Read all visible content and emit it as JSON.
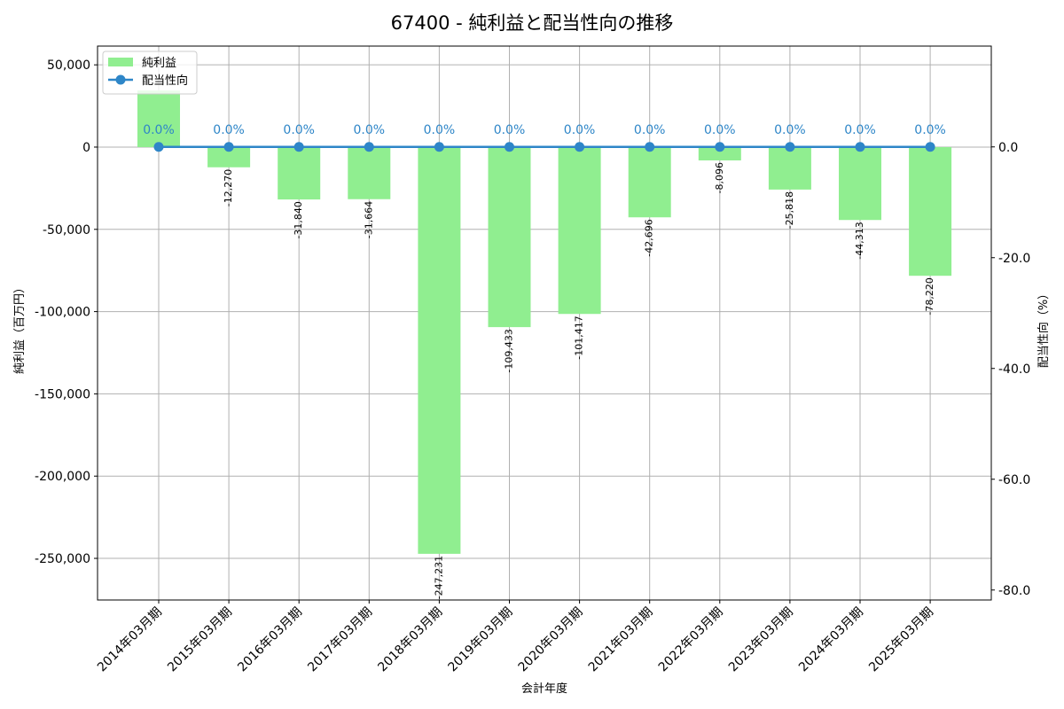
{
  "title": "67400 - 純利益と配当性向の推移",
  "chart_data": {
    "type": "bar+line",
    "title": "67400 - 純利益と配当性向の推移",
    "xlabel": "会計年度",
    "ylabel_left": "純利益（百万円）",
    "ylabel_right": "配当性向（%）",
    "categories": [
      "2014年03月期",
      "2015年03月期",
      "2016年03月期",
      "2017年03月期",
      "2018年03月期",
      "2019年03月期",
      "2020年03月期",
      "2021年03月期",
      "2022年03月期",
      "2023年03月期",
      "2024年03月期",
      "2025年03月期"
    ],
    "series": [
      {
        "name": "純利益",
        "type": "bar",
        "axis": "left",
        "color": "#90ee90",
        "values": [
          34400,
          -12270,
          -31840,
          -31664,
          -247231,
          -109433,
          -101417,
          -42696,
          -8096,
          -25818,
          -44313,
          -78220
        ],
        "labels": [
          "",
          "-12,270",
          "-31,840",
          "-31,664",
          "-247,231",
          "-109,433",
          "-101,417",
          "-42,696",
          "-8,096",
          "-25,818",
          "-44,313",
          "-78,220"
        ],
        "note": "2014 value label obscured by legend; value estimated from bar height"
      },
      {
        "name": "配当性向",
        "type": "line",
        "axis": "right",
        "color": "#2e86c8",
        "values": [
          0.0,
          0.0,
          0.0,
          0.0,
          0.0,
          0.0,
          0.0,
          0.0,
          0.0,
          0.0,
          0.0,
          0.0
        ],
        "labels": [
          "0.0%",
          "0.0%",
          "0.0%",
          "0.0%",
          "0.0%",
          "0.0%",
          "0.0%",
          "0.0%",
          "0.0%",
          "0.0%",
          "0.0%",
          "0.0%"
        ]
      }
    ],
    "ylim_left": [
      -275300,
      61400
    ],
    "ylim_right": [
      -81.8,
      18.2
    ],
    "yticks_left": [
      50000,
      0,
      -50000,
      -100000,
      -150000,
      -200000,
      -250000
    ],
    "yticks_left_labels": [
      "50,000",
      "0",
      "-50,000",
      "-100,000",
      "-150,000",
      "-200,000",
      "-250,000"
    ],
    "yticks_right": [
      0,
      -20,
      -40,
      -60,
      -80
    ],
    "yticks_right_labels": [
      "0.0",
      "-20.0",
      "-40.0",
      "-60.0",
      "-80.0"
    ],
    "grid": true,
    "legend_position": "upper left",
    "legend": [
      "純利益",
      "配当性向"
    ]
  }
}
